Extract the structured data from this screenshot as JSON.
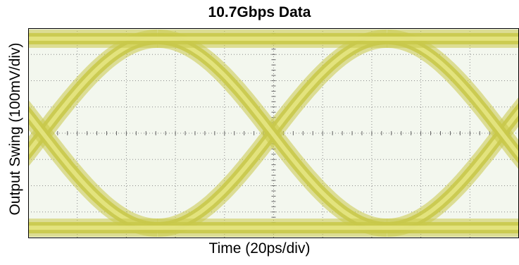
{
  "chart_data": {
    "type": "eye-diagram",
    "title": "10.7Gbps Data",
    "xlabel": "Time (20ps/div)",
    "ylabel": "Output Swing (100mV/div)",
    "divisions": {
      "x": 10,
      "y": 8
    },
    "unit_interval_ps": 93.5,
    "eye_amplitude_mV": 720,
    "crossing_times_ps": [
      6,
      99.5,
      193
    ],
    "crossing_level_mV": 0,
    "logic_high_mV": 360,
    "logic_low_mV": -360,
    "xlim_ps": [
      0,
      200
    ],
    "ylim_mV": [
      -400,
      400
    ],
    "trace_color": "#c9c94a",
    "trace_core_color": "#e8e888",
    "plot_background": "#f3f7ee",
    "grid": true
  }
}
